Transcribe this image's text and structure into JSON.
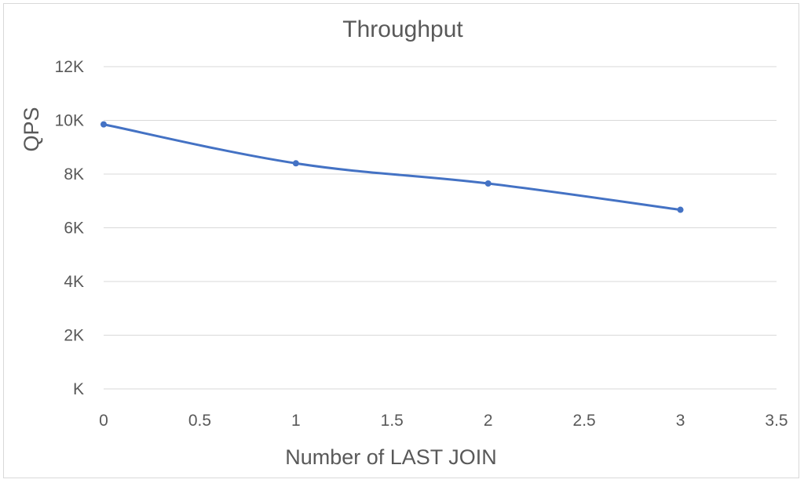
{
  "chart_data": {
    "type": "line",
    "title": "Throughput",
    "xlabel": "Number of LAST JOIN",
    "ylabel": "QPS",
    "xlim": [
      0,
      3.5
    ],
    "ylim": [
      0,
      12000
    ],
    "x_ticks": [
      "0",
      "0.5",
      "1",
      "1.5",
      "2",
      "2.5",
      "3",
      "3.5"
    ],
    "y_ticks": [
      "K",
      "2K",
      "4K",
      "6K",
      "8K",
      "10K",
      "12K"
    ],
    "grid": "horizontal",
    "series": [
      {
        "x": [
          0,
          1,
          2,
          3
        ],
        "values": [
          9850,
          8400,
          7650,
          6670
        ],
        "color": "#4472c4"
      }
    ]
  }
}
